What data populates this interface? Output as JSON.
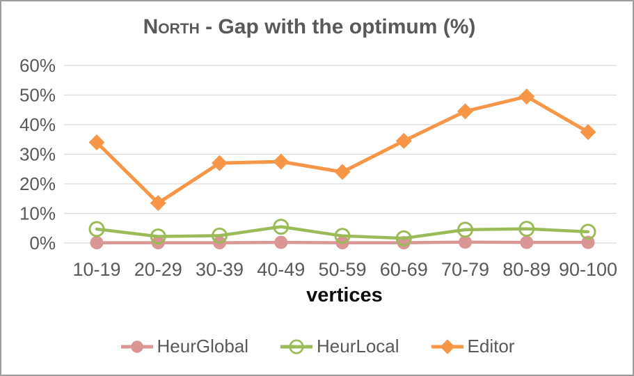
{
  "chart_data": {
    "type": "line",
    "title": "North - Gap with the optimum (%)",
    "title_region": "North",
    "title_rest": " - Gap with the optimum (%)",
    "xlabel": "vertices",
    "categories": [
      "10-19",
      "20-29",
      "30-39",
      "40-49",
      "50-59",
      "60-69",
      "70-79",
      "80-89",
      "90-100"
    ],
    "y_tick_labels": [
      "0%",
      "10%",
      "20%",
      "30%",
      "40%",
      "50%",
      "60%"
    ],
    "ylim": [
      0,
      60
    ],
    "y_tick_step": 10,
    "grid": "horizontal-only",
    "legend_position": "bottom",
    "series": [
      {
        "name": "HeurGlobal",
        "color": "#D99694",
        "marker": "filled-circle",
        "values": [
          0.1,
          0.1,
          0.1,
          0.2,
          0.1,
          0.1,
          0.3,
          0.2,
          0.2
        ]
      },
      {
        "name": "HeurLocal",
        "color": "#9BBB59",
        "marker": "open-circle",
        "values": [
          4.7,
          2.2,
          2.5,
          5.5,
          2.4,
          1.6,
          4.5,
          4.8,
          3.8
        ]
      },
      {
        "name": "Editor",
        "color": "#F79646",
        "marker": "diamond",
        "values": [
          34,
          13.5,
          27,
          27.5,
          24,
          34.5,
          44.5,
          49.5,
          37.5
        ]
      }
    ]
  },
  "colors": {
    "grid": "#D9D9D9",
    "tick_text": "#595959",
    "title_text": "#595959",
    "axis_title_text": "#0d0d0d",
    "frame_border": "#9c9c9c",
    "background": "#FFFFFF"
  }
}
